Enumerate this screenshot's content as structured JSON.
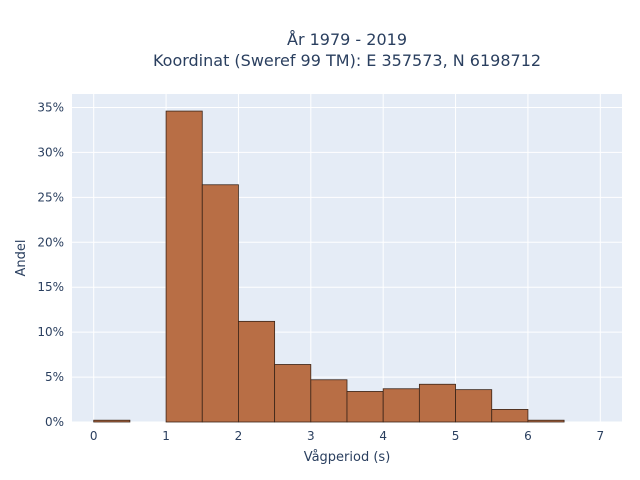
{
  "chart_data": {
    "type": "bar",
    "title_lines": [
      "År 1979 - 2019",
      "Koordinat (Sweref 99 TM): E 357573, N 6198712"
    ],
    "xlabel": "Vågperiod (s)",
    "ylabel": "Andel",
    "bin_width": 0.5,
    "bins": [
      {
        "x0": 0.0,
        "value": 0.2
      },
      {
        "x0": 0.5,
        "value": 0.0
      },
      {
        "x0": 1.0,
        "value": 34.6
      },
      {
        "x0": 1.5,
        "value": 26.4
      },
      {
        "x0": 2.0,
        "value": 11.2
      },
      {
        "x0": 2.5,
        "value": 6.4
      },
      {
        "x0": 3.0,
        "value": 4.7
      },
      {
        "x0": 3.5,
        "value": 3.4
      },
      {
        "x0": 4.0,
        "value": 3.7
      },
      {
        "x0": 4.5,
        "value": 4.2
      },
      {
        "x0": 5.0,
        "value": 3.6
      },
      {
        "x0": 5.5,
        "value": 1.4
      },
      {
        "x0": 6.0,
        "value": 0.2
      }
    ],
    "xlim": [
      -0.3,
      7.3
    ],
    "ylim": [
      0,
      36.5
    ],
    "x_ticks": [
      0,
      1,
      2,
      3,
      4,
      5,
      6,
      7
    ],
    "x_tick_labels": [
      "0",
      "1",
      "2",
      "3",
      "4",
      "5",
      "6",
      "7"
    ],
    "y_ticks": [
      0,
      5,
      10,
      15,
      20,
      25,
      30,
      35
    ],
    "y_tick_labels": [
      "0%",
      "5%",
      "10%",
      "15%",
      "20%",
      "25%",
      "30%",
      "35%"
    ],
    "grid": true,
    "colors": {
      "bar_fill": "#b86e45",
      "bar_stroke": "#3a2418",
      "plot_bg": "#e5ecf6",
      "grid": "#ffffff",
      "text": "#2a3f5f"
    }
  }
}
